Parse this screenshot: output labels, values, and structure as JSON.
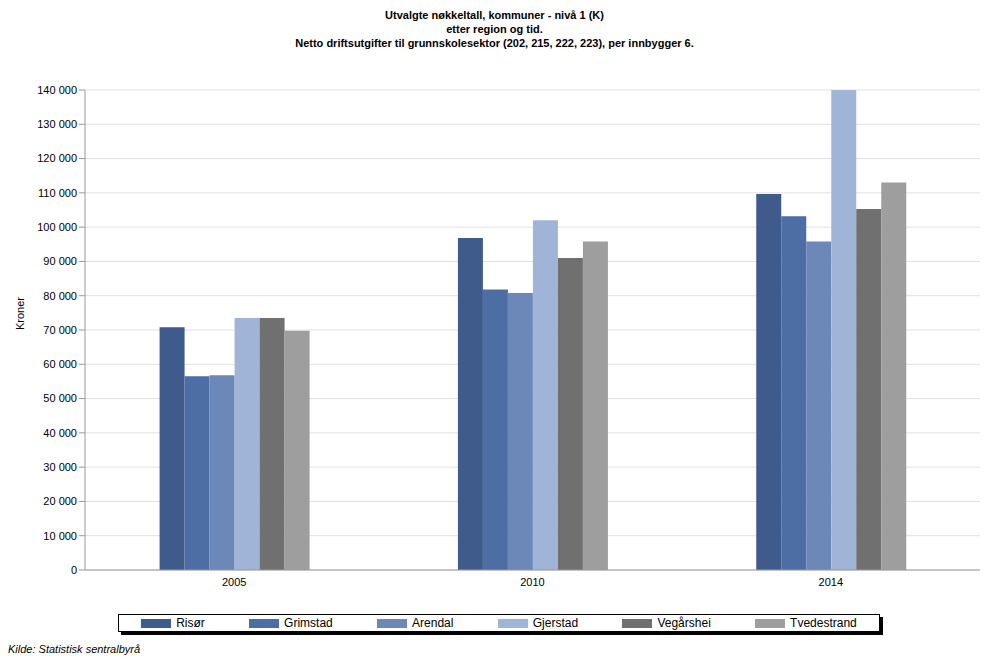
{
  "chart_data": {
    "type": "bar",
    "title": "Utvalgte nøkkeltall, kommuner - nivå 1 (K)",
    "subtitle": [
      "etter region og tid.",
      "Netto driftsutgifter til grunnskolesektor (202, 215, 222, 223), per innbygger 6."
    ],
    "y_label": "Kroner",
    "source": "Kilde: Statistisk sentralbyrå",
    "categories": [
      "2005",
      "2010",
      "2014"
    ],
    "series": [
      {
        "name": "Risør",
        "color": "#3f5b8b",
        "values": [
          70800,
          96800,
          109700
        ]
      },
      {
        "name": "Grimstad",
        "color": "#4d6ea5",
        "values": [
          56500,
          81800,
          103200
        ]
      },
      {
        "name": "Arendal",
        "color": "#6b88b8",
        "values": [
          56800,
          80800,
          95800
        ]
      },
      {
        "name": "Gjerstad",
        "color": "#a0b4d8",
        "values": [
          73500,
          102000,
          140000
        ]
      },
      {
        "name": "Vegårshei",
        "color": "#707070",
        "values": [
          73500,
          91000,
          105300
        ]
      },
      {
        "name": "Tvedestrand",
        "color": "#9e9e9e",
        "values": [
          69800,
          95800,
          113000
        ]
      }
    ],
    "ylim": [
      0,
      140000
    ],
    "yticks": [
      0,
      {
        "value": 10000,
        "label": "10 000"
      },
      {
        "value": 20000,
        "label": "20 000"
      },
      {
        "value": 30000,
        "label": "30 000"
      },
      {
        "value": 40000,
        "label": "40 000"
      },
      {
        "value": 50000,
        "label": "50 000"
      },
      {
        "value": 60000,
        "label": "60 000"
      },
      {
        "value": 70000,
        "label": "70 000"
      },
      {
        "value": 80000,
        "label": "80 000"
      },
      {
        "value": 90000,
        "label": "90 000"
      },
      {
        "value": 100000,
        "label": "100 000"
      },
      {
        "value": 110000,
        "label": "110 000"
      },
      {
        "value": 120000,
        "label": "120 000"
      },
      {
        "value": 130000,
        "label": "130 000"
      },
      {
        "value": 140000,
        "label": "140 000"
      }
    ],
    "grid": true,
    "legend": "bottom"
  }
}
